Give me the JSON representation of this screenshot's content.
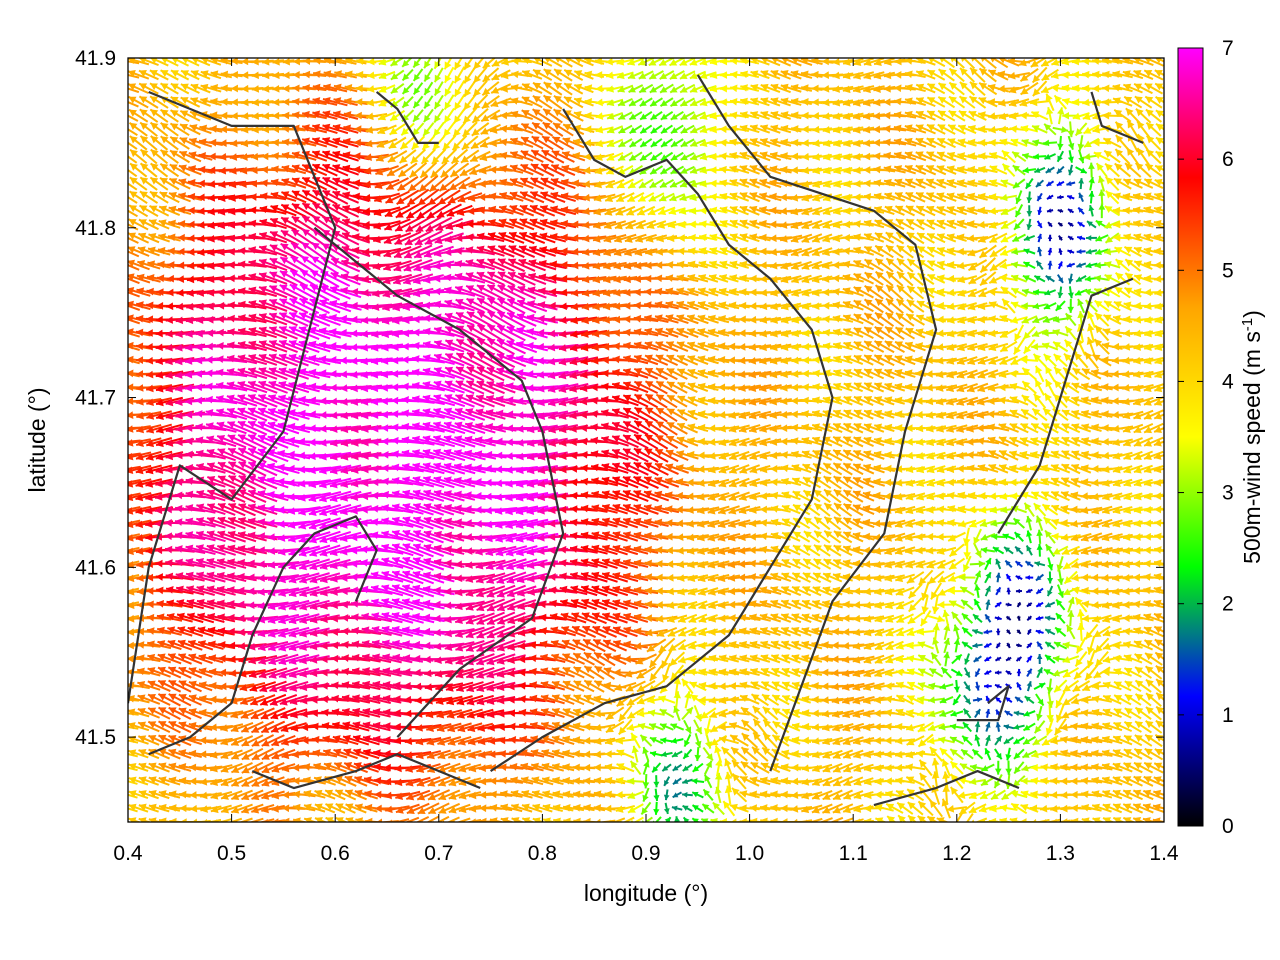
{
  "chart_data": {
    "type": "vector-field",
    "xlabel": "longitude (°)",
    "ylabel": "latitude (°)",
    "xlim": [
      0.4,
      1.4
    ],
    "ylim": [
      41.45,
      41.9
    ],
    "x_ticks": [
      "0.4",
      "0.5",
      "0.6",
      "0.7",
      "0.8",
      "0.9",
      "1.0",
      "1.1",
      "1.2",
      "1.3",
      "1.4"
    ],
    "y_ticks": [
      "41.5",
      "41.6",
      "41.7",
      "41.8",
      "41.9"
    ],
    "colorbar": {
      "label": "500m-wind speed (m s",
      "label_sup": "-1",
      "label_close": ")",
      "range": [
        0,
        7
      ],
      "ticks": [
        "0",
        "1",
        "2",
        "3",
        "4",
        "5",
        "6",
        "7"
      ],
      "colors": [
        "#000000",
        "#0000ff",
        "#00ff00",
        "#ffff00",
        "#ffa500",
        "#ff0000",
        "#ff00ff"
      ]
    },
    "field": {
      "grid_spacing_deg": 0.01,
      "regions": [
        {
          "name": "strong-westward-jet",
          "center": [
            0.65,
            41.67
          ],
          "speed_ms": 7.0,
          "direction": "westward"
        },
        {
          "name": "southeast-calm",
          "center": [
            1.26,
            41.57
          ],
          "speed_ms": 1.0,
          "direction": "variable"
        },
        {
          "name": "northeast-calm",
          "center": [
            1.3,
            41.8
          ],
          "speed_ms": 0.8,
          "direction": "variable"
        },
        {
          "name": "north-green-pocket",
          "center": [
            0.69,
            41.87
          ],
          "speed_ms": 2.2,
          "direction": "southward"
        },
        {
          "name": "north-green-pocket-2",
          "center": [
            0.92,
            41.86
          ],
          "speed_ms": 2.2,
          "direction": "southwestward"
        },
        {
          "name": "south-green-pocket",
          "center": [
            0.93,
            41.47
          ],
          "speed_ms": 2.0,
          "direction": "variable"
        },
        {
          "name": "east-green-band",
          "center": [
            1.22,
            41.52
          ],
          "speed_ms": 2.3,
          "direction": "variable"
        }
      ]
    },
    "coastlines": [
      [
        [
          0.42,
          41.88
        ],
        [
          0.5,
          41.86
        ],
        [
          0.56,
          41.86
        ],
        [
          0.6,
          41.8
        ],
        [
          0.55,
          41.68
        ],
        [
          0.5,
          41.64
        ],
        [
          0.45,
          41.66
        ],
        [
          0.42,
          41.6
        ],
        [
          0.4,
          41.52
        ]
      ],
      [
        [
          0.52,
          41.48
        ],
        [
          0.56,
          41.47
        ],
        [
          0.62,
          41.48
        ],
        [
          0.66,
          41.49
        ],
        [
          0.74,
          41.47
        ]
      ],
      [
        [
          0.58,
          41.8
        ],
        [
          0.62,
          41.78
        ],
        [
          0.66,
          41.76
        ],
        [
          0.72,
          41.74
        ],
        [
          0.78,
          41.71
        ],
        [
          0.8,
          41.68
        ],
        [
          0.82,
          41.62
        ],
        [
          0.79,
          41.57
        ],
        [
          0.72,
          41.54
        ],
        [
          0.66,
          41.5
        ]
      ],
      [
        [
          0.62,
          41.58
        ],
        [
          0.64,
          41.61
        ],
        [
          0.62,
          41.63
        ],
        [
          0.58,
          41.62
        ],
        [
          0.55,
          41.6
        ],
        [
          0.52,
          41.56
        ],
        [
          0.5,
          41.52
        ],
        [
          0.46,
          41.5
        ],
        [
          0.42,
          41.49
        ]
      ],
      [
        [
          0.64,
          41.88
        ],
        [
          0.66,
          41.87
        ],
        [
          0.68,
          41.85
        ],
        [
          0.7,
          41.85
        ]
      ],
      [
        [
          0.82,
          41.87
        ],
        [
          0.85,
          41.84
        ],
        [
          0.88,
          41.83
        ],
        [
          0.92,
          41.84
        ],
        [
          0.95,
          41.82
        ],
        [
          0.98,
          41.79
        ],
        [
          1.02,
          41.77
        ],
        [
          1.06,
          41.74
        ],
        [
          1.08,
          41.7
        ],
        [
          1.06,
          41.64
        ],
        [
          1.02,
          41.6
        ],
        [
          0.98,
          41.56
        ],
        [
          0.92,
          41.53
        ],
        [
          0.86,
          41.52
        ],
        [
          0.8,
          41.5
        ],
        [
          0.75,
          41.48
        ]
      ],
      [
        [
          0.95,
          41.89
        ],
        [
          0.98,
          41.86
        ],
        [
          1.02,
          41.83
        ],
        [
          1.07,
          41.82
        ],
        [
          1.12,
          41.81
        ],
        [
          1.16,
          41.79
        ],
        [
          1.18,
          41.74
        ],
        [
          1.15,
          41.68
        ],
        [
          1.13,
          41.62
        ],
        [
          1.08,
          41.58
        ],
        [
          1.05,
          41.53
        ],
        [
          1.02,
          41.48
        ]
      ],
      [
        [
          1.12,
          41.46
        ],
        [
          1.18,
          41.47
        ],
        [
          1.22,
          41.48
        ],
        [
          1.26,
          41.47
        ]
      ],
      [
        [
          1.2,
          41.51
        ],
        [
          1.24,
          41.51
        ],
        [
          1.25,
          41.53
        ],
        [
          1.23,
          41.52
        ]
      ],
      [
        [
          1.24,
          41.62
        ],
        [
          1.28,
          41.66
        ],
        [
          1.3,
          41.7
        ],
        [
          1.32,
          41.74
        ],
        [
          1.33,
          41.76
        ],
        [
          1.37,
          41.77
        ]
      ],
      [
        [
          1.33,
          41.88
        ],
        [
          1.34,
          41.86
        ],
        [
          1.38,
          41.85
        ]
      ]
    ]
  }
}
